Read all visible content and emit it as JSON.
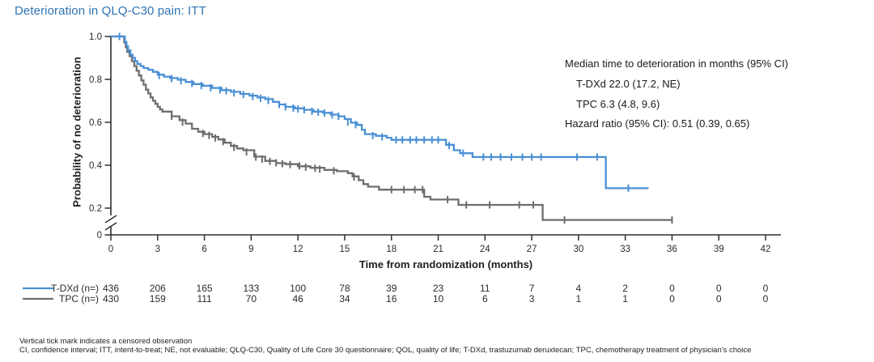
{
  "title": "Deterioration in QLQ-C30 pain: ITT",
  "colors": {
    "title_blue": "#2E74B5",
    "tdxd_blue": "#4A90D5",
    "tpc_gray": "#6E6E6E",
    "axis": "#2f2f2f",
    "text": "#1a1a1a"
  },
  "annotation": {
    "heading": "Median time to deterioration in months (95% CI)",
    "tdxd_line": "T-DXd 22.0 (17.2, NE)",
    "tpc_line": "TPC 6.3 (4.8, 9.6)",
    "hazard_line": "Hazard ratio (95% CI): 0.51 (0.39, 0.65)"
  },
  "at_risk": {
    "rows": [
      {
        "label": "T-DXd (n=)",
        "color": "#4A90D5",
        "counts": [
          436,
          206,
          165,
          133,
          100,
          78,
          39,
          23,
          11,
          7,
          4,
          2,
          0,
          0,
          0
        ]
      },
      {
        "label": "TPC (n=)",
        "color": "#6E6E6E",
        "counts": [
          430,
          159,
          111,
          70,
          46,
          34,
          16,
          10,
          6,
          3,
          1,
          1,
          0,
          0,
          0
        ]
      }
    ]
  },
  "footnotes": {
    "line1": "Vertical tick mark indicates a censored observation",
    "line2": "CI, confidence interval; ITT, intent-to-treat; NE, not evaluable; QLQ-C30, Quality of Life Core 30 questionnaire; QOL, quality of life; T-DXd, trastuzumab deruxtecan; TPC, chemotherapy treatment of physician's choice"
  },
  "chart_data": {
    "type": "line",
    "subtype": "kaplan-meier-step",
    "title": "Deterioration in QLQ-C30 pain: ITT",
    "xlabel": "Time from randomization (months)",
    "ylabel": "Probability of no deterioration",
    "xlim": [
      0,
      42
    ],
    "ylim": [
      0,
      1.0
    ],
    "y_axis_break_below": 0.2,
    "grid": false,
    "legend_position": "below-left-of-at-risk-table",
    "xticks": [
      0,
      3,
      6,
      9,
      12,
      15,
      18,
      21,
      24,
      27,
      30,
      33,
      36,
      39,
      42
    ],
    "yticks": [
      {
        "v": 1.0,
        "label": "1.0"
      },
      {
        "v": 0.8,
        "label": "0.8"
      },
      {
        "v": 0.6,
        "label": "0.6"
      },
      {
        "v": 0.4,
        "label": "0.4"
      },
      {
        "v": 0.2,
        "label": "0.2"
      },
      {
        "v": 0,
        "label": "0"
      }
    ],
    "series": [
      {
        "name": "TPC",
        "color": "#6E6E6E",
        "median_months": 6.3,
        "ci95": [
          4.8,
          9.6
        ],
        "points": [
          [
            0,
            1.0
          ],
          [
            0.75,
            1.0
          ],
          [
            0.85,
            0.972
          ],
          [
            0.95,
            0.95
          ],
          [
            1.05,
            0.928
          ],
          [
            1.2,
            0.908
          ],
          [
            1.35,
            0.885
          ],
          [
            1.5,
            0.862
          ],
          [
            1.65,
            0.84
          ],
          [
            1.8,
            0.818
          ],
          [
            1.95,
            0.795
          ],
          [
            2.1,
            0.775
          ],
          [
            2.25,
            0.752
          ],
          [
            2.4,
            0.734
          ],
          [
            2.55,
            0.716
          ],
          [
            2.7,
            0.7
          ],
          [
            2.85,
            0.686
          ],
          [
            3.0,
            0.672
          ],
          [
            3.15,
            0.66
          ],
          [
            3.3,
            0.65
          ],
          [
            3.9,
            0.628
          ],
          [
            4.4,
            0.61
          ],
          [
            4.8,
            0.594
          ],
          [
            5.2,
            0.57
          ],
          [
            5.6,
            0.556
          ],
          [
            6.0,
            0.545
          ],
          [
            6.5,
            0.532
          ],
          [
            6.9,
            0.52
          ],
          [
            7.3,
            0.505
          ],
          [
            7.7,
            0.49
          ],
          [
            8.1,
            0.478
          ],
          [
            8.5,
            0.47
          ],
          [
            9.2,
            0.44
          ],
          [
            9.9,
            0.42
          ],
          [
            10.6,
            0.41
          ],
          [
            11.2,
            0.405
          ],
          [
            12.0,
            0.395
          ],
          [
            12.8,
            0.388
          ],
          [
            13.7,
            0.378
          ],
          [
            14.5,
            0.372
          ],
          [
            15.2,
            0.363
          ],
          [
            15.5,
            0.348
          ],
          [
            15.9,
            0.33
          ],
          [
            16.2,
            0.312
          ],
          [
            16.5,
            0.3
          ],
          [
            17.2,
            0.286
          ],
          [
            20.1,
            0.253
          ],
          [
            20.5,
            0.24
          ],
          [
            22.3,
            0.215
          ],
          [
            27.7,
            0.145
          ],
          [
            36.0,
            0.145
          ]
        ],
        "censors": [
          [
            3.9,
            0.628
          ],
          [
            4.6,
            0.601
          ],
          [
            5.9,
            0.548
          ],
          [
            6.3,
            0.539
          ],
          [
            6.7,
            0.527
          ],
          [
            7.2,
            0.51
          ],
          [
            7.9,
            0.483
          ],
          [
            8.7,
            0.462
          ],
          [
            9.3,
            0.438
          ],
          [
            9.7,
            0.428
          ],
          [
            10.2,
            0.418
          ],
          [
            10.6,
            0.411
          ],
          [
            11.0,
            0.407
          ],
          [
            11.5,
            0.403
          ],
          [
            12.1,
            0.397
          ],
          [
            12.5,
            0.391
          ],
          [
            13.1,
            0.386
          ],
          [
            13.4,
            0.382
          ],
          [
            14.3,
            0.374
          ],
          [
            15.6,
            0.345
          ],
          [
            18.0,
            0.286
          ],
          [
            18.8,
            0.286
          ],
          [
            19.5,
            0.286
          ],
          [
            20.0,
            0.286
          ],
          [
            21.6,
            0.24
          ],
          [
            22.8,
            0.215
          ],
          [
            24.3,
            0.215
          ],
          [
            26.2,
            0.215
          ],
          [
            27.1,
            0.215
          ],
          [
            29.1,
            0.145
          ],
          [
            36.0,
            0.145
          ]
        ]
      },
      {
        "name": "T-DXd",
        "color": "#4A90D5",
        "median_months": 22.0,
        "ci95": [
          17.2,
          null
        ],
        "points": [
          [
            0,
            1.0
          ],
          [
            0.8,
            1.0
          ],
          [
            0.9,
            0.975
          ],
          [
            1.0,
            0.955
          ],
          [
            1.1,
            0.935
          ],
          [
            1.25,
            0.915
          ],
          [
            1.4,
            0.9
          ],
          [
            1.55,
            0.885
          ],
          [
            1.7,
            0.872
          ],
          [
            1.9,
            0.862
          ],
          [
            2.1,
            0.853
          ],
          [
            2.4,
            0.845
          ],
          [
            2.7,
            0.835
          ],
          [
            3.0,
            0.822
          ],
          [
            3.4,
            0.813
          ],
          [
            3.8,
            0.806
          ],
          [
            4.3,
            0.798
          ],
          [
            4.8,
            0.788
          ],
          [
            5.3,
            0.778
          ],
          [
            5.9,
            0.77
          ],
          [
            6.5,
            0.76
          ],
          [
            7.1,
            0.75
          ],
          [
            7.7,
            0.742
          ],
          [
            8.3,
            0.732
          ],
          [
            8.9,
            0.724
          ],
          [
            9.4,
            0.716
          ],
          [
            9.9,
            0.708
          ],
          [
            10.4,
            0.695
          ],
          [
            10.8,
            0.683
          ],
          [
            11.2,
            0.672
          ],
          [
            11.8,
            0.665
          ],
          [
            12.4,
            0.658
          ],
          [
            13.0,
            0.65
          ],
          [
            13.6,
            0.644
          ],
          [
            14.1,
            0.636
          ],
          [
            14.6,
            0.628
          ],
          [
            15.0,
            0.615
          ],
          [
            15.4,
            0.598
          ],
          [
            15.8,
            0.588
          ],
          [
            16.1,
            0.565
          ],
          [
            16.3,
            0.545
          ],
          [
            17.0,
            0.537
          ],
          [
            17.7,
            0.528
          ],
          [
            18.0,
            0.518
          ],
          [
            21.3,
            0.518
          ],
          [
            21.5,
            0.495
          ],
          [
            22.0,
            0.47
          ],
          [
            22.4,
            0.456
          ],
          [
            23.2,
            0.438
          ],
          [
            31.7,
            0.438
          ],
          [
            31.75,
            0.293
          ],
          [
            34.5,
            0.293
          ]
        ],
        "censors": [
          [
            0.55,
            1.0
          ],
          [
            3.1,
            0.818
          ],
          [
            3.9,
            0.804
          ],
          [
            4.5,
            0.793
          ],
          [
            5.2,
            0.781
          ],
          [
            5.8,
            0.771
          ],
          [
            6.4,
            0.761
          ],
          [
            7.0,
            0.751
          ],
          [
            7.4,
            0.746
          ],
          [
            7.9,
            0.737
          ],
          [
            8.5,
            0.729
          ],
          [
            9.1,
            0.72
          ],
          [
            9.6,
            0.712
          ],
          [
            10.1,
            0.702
          ],
          [
            10.8,
            0.683
          ],
          [
            11.2,
            0.672
          ],
          [
            11.7,
            0.666
          ],
          [
            12.0,
            0.662
          ],
          [
            12.4,
            0.658
          ],
          [
            12.9,
            0.651
          ],
          [
            13.3,
            0.647
          ],
          [
            13.7,
            0.643
          ],
          [
            14.2,
            0.634
          ],
          [
            14.6,
            0.628
          ],
          [
            15.2,
            0.601
          ],
          [
            15.7,
            0.589
          ],
          [
            16.8,
            0.538
          ],
          [
            17.4,
            0.532
          ],
          [
            18.3,
            0.518
          ],
          [
            18.7,
            0.518
          ],
          [
            19.2,
            0.518
          ],
          [
            19.6,
            0.518
          ],
          [
            20.1,
            0.518
          ],
          [
            20.6,
            0.518
          ],
          [
            21.0,
            0.518
          ],
          [
            21.7,
            0.492
          ],
          [
            22.6,
            0.456
          ],
          [
            23.9,
            0.438
          ],
          [
            24.4,
            0.438
          ],
          [
            25.0,
            0.438
          ],
          [
            25.7,
            0.438
          ],
          [
            26.4,
            0.438
          ],
          [
            27.0,
            0.438
          ],
          [
            27.6,
            0.438
          ],
          [
            29.9,
            0.438
          ],
          [
            31.2,
            0.438
          ],
          [
            33.2,
            0.293
          ]
        ]
      }
    ]
  }
}
